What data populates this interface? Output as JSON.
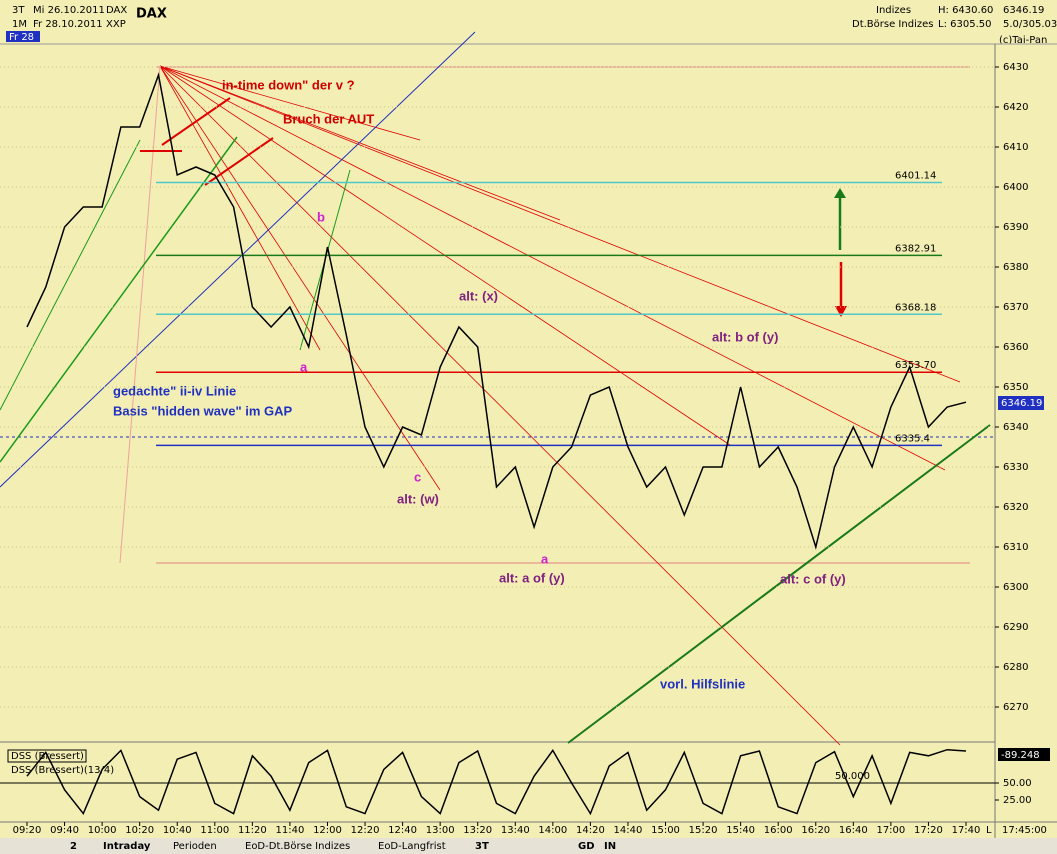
{
  "header": {
    "period": "3T",
    "from": "Mi 26.10.2011",
    "symbol": "DAX",
    "name": "DAX",
    "resolution": "1M",
    "to": "Fr 28.10.2011",
    "exchange": "XXP",
    "day": "Fr 28",
    "group": "Indizes",
    "group_full": "Dt.Börse Indizes",
    "high": "H: 6430.60",
    "low": "L: 6305.50",
    "last": "6346.19",
    "volume": "5.0/305.03",
    "copyright": "(c)Tai-Pan",
    "time": "17:45:00",
    "axis_end": "L"
  },
  "annotations": {
    "a1": "in-time down\" der v ?",
    "a2": "Bruch der AUT",
    "a3": "b",
    "a4": "a",
    "a5": "c",
    "a6": "alt: (x)",
    "a7": "alt: (w)",
    "a8": "alt: a of (y)",
    "a9": "a",
    "a10": "alt: b of (y)",
    "a11": "alt: c of (y)",
    "a12": "gedachte\" ii-iv Linie",
    "a13": "Basis \"hidden wave\" im GAP",
    "a14": "vorl. Hilfslinie"
  },
  "tabs": [
    "Intraday",
    "Perioden",
    "EoD-Dt.Börse Indizes",
    "EoD-Langfrist"
  ],
  "toolbar": [
    "2",
    "3T",
    "GD",
    "IN"
  ],
  "chart_data": [
    {
      "type": "line",
      "title": "DAX",
      "color": "#000000",
      "categories": [
        "09:20",
        null,
        "09:40",
        null,
        "10:00",
        null,
        "10:20",
        null,
        "10:40",
        null,
        "11:00",
        null,
        "11:20",
        null,
        "11:40",
        null,
        "12:00",
        null,
        "12:20",
        null,
        "12:40",
        null,
        "13:00",
        null,
        "13:20",
        null,
        "13:40",
        null,
        "14:00",
        null,
        "14:20",
        null,
        "14:40",
        null,
        "15:00",
        null,
        "15:20",
        null,
        "15:40",
        null,
        "16:00",
        null,
        "16:20",
        null,
        "16:40",
        null,
        "17:00",
        null,
        "17:20",
        null,
        "17:40"
      ],
      "values": [
        6365,
        6375,
        6390,
        6395,
        6395,
        6415,
        6415,
        6428,
        6403,
        6405,
        6403,
        6395,
        6370,
        6365,
        6370,
        6360,
        6385,
        6363,
        6340,
        6330,
        6340,
        6338,
        6355,
        6365,
        6360,
        6325,
        6330,
        6315,
        6330,
        6335,
        6348,
        6350,
        6335,
        6325,
        6330,
        6318,
        6330,
        6330,
        6350,
        6330,
        6335,
        6325,
        6310,
        6330,
        6340,
        6330,
        6345,
        6355,
        6340,
        6345,
        6346.19
      ],
      "ylim": [
        6262,
        6439
      ],
      "yticks": [
        6270,
        6280,
        6290,
        6300,
        6310,
        6320,
        6330,
        6340,
        6350,
        6360,
        6370,
        6380,
        6390,
        6400,
        6410,
        6420,
        6430
      ],
      "grid": true,
      "levels": [
        {
          "value": 6401.14,
          "color": "#50c8c8"
        },
        {
          "value": 6382.91,
          "color": "#1a7a1a"
        },
        {
          "value": 6368.18,
          "color": "#50c8c8"
        },
        {
          "value": {
            "value": 6353.7,
            "label": "6353.70"
          },
          "color": "#e00000"
        },
        {
          "value": 6335.4,
          "color": "#2030c0"
        }
      ]
    },
    {
      "type": "line",
      "title": "DSS (Bressert)",
      "subtitle": "DSS (Bressert)(13/4)",
      "readout": "-89.248",
      "color": "#000000",
      "values": [
        60,
        95,
        40,
        5,
        70,
        98,
        30,
        10,
        85,
        95,
        20,
        5,
        90,
        60,
        10,
        80,
        98,
        15,
        5,
        70,
        95,
        30,
        5,
        80,
        97,
        20,
        5,
        60,
        98,
        50,
        5,
        75,
        95,
        10,
        40,
        95,
        20,
        5,
        90,
        97,
        15,
        5,
        80,
        96,
        30,
        90,
        20,
        95,
        90,
        99,
        97
      ],
      "ylim": [
        0,
        100
      ],
      "yticks": [
        {
          "value": 50,
          "label": "50.00"
        },
        {
          "value": 25,
          "label": "25.00"
        }
      ],
      "levels": [
        {
          "value": {
            "value": 50,
            "label": "50.000"
          },
          "color": "#000000"
        }
      ]
    }
  ]
}
